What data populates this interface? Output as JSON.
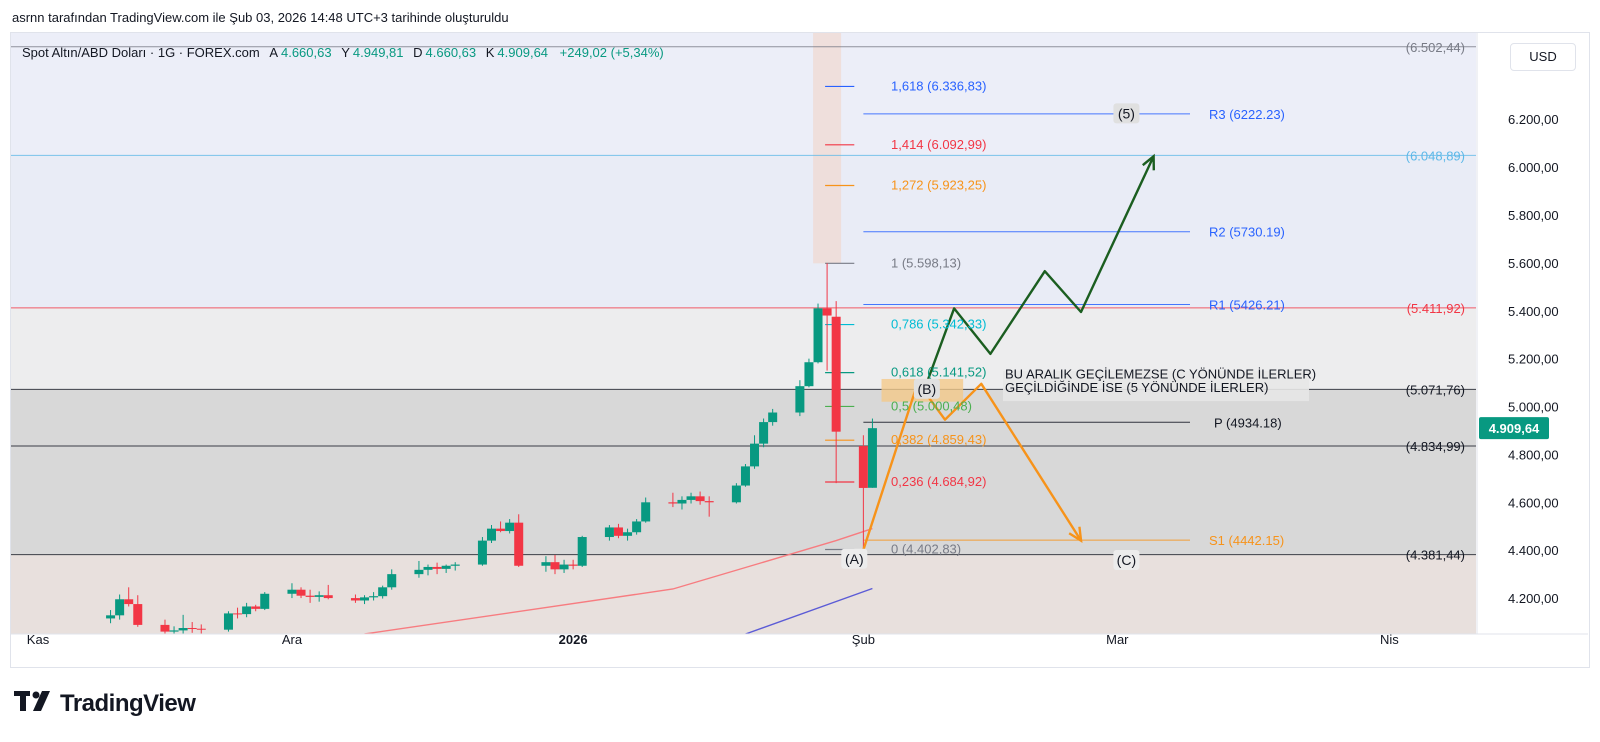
{
  "caption": "asrnn tarafından TradingView.com ile Şub 03, 2026 14:48 UTC+3 tarihinde oluşturuldu",
  "legend": {
    "symbol": "Spot Altın/ABD Doları · 1G · FOREX.com",
    "o_label": "A",
    "o": "4.660,63",
    "h_label": "Y",
    "h": "4.949,81",
    "l_label": "D",
    "l": "4.660,63",
    "c_label": "K",
    "c": "4.909,64",
    "change": "+249,02 (+5,34%)"
  },
  "currency": "USD",
  "logo_text": "TradingView",
  "colors": {
    "up": "#089981",
    "down": "#f23645",
    "fib_blue": "#2962ff",
    "orange": "#f7931a",
    "green_arrow": "#1b5e20"
  },
  "chart_data": {
    "type": "candlestick",
    "ylim": [
      4050,
      6560
    ],
    "x_labels": [
      {
        "label": "Kas",
        "date": "2025-11-03"
      },
      {
        "label": "Ara",
        "date": "2025-12-01"
      },
      {
        "label": "2026",
        "date": "2026-01-01"
      },
      {
        "label": "Şub",
        "date": "2026-02-02"
      },
      {
        "label": "Mar",
        "date": "2026-03-02"
      },
      {
        "label": "Nis",
        "date": "2026-04-01"
      }
    ],
    "y_ticks": [
      "4.200,00",
      "4.400,00",
      "4.600,00",
      "4.800,00",
      "5.000,00",
      "5.200,00",
      "5.400,00",
      "5.600,00",
      "5.800,00",
      "6.000,00",
      "6.200,00"
    ],
    "y_tick_values": [
      4200,
      4400,
      4600,
      4800,
      5000,
      5200,
      5400,
      5600,
      5800,
      6000,
      6200
    ],
    "last_price": {
      "value": 4909.64,
      "label": "4.909,64"
    },
    "candles": [
      {
        "t": "2025-11-11",
        "o": 4115,
        "h": 4150,
        "l": 4095,
        "c": 4128
      },
      {
        "t": "2025-11-12",
        "o": 4128,
        "h": 4215,
        "l": 4110,
        "c": 4195
      },
      {
        "t": "2025-11-13",
        "o": 4195,
        "h": 4245,
        "l": 4165,
        "c": 4175
      },
      {
        "t": "2025-11-14",
        "o": 4175,
        "h": 4212,
        "l": 4080,
        "c": 4088
      },
      {
        "t": "2025-11-17",
        "o": 4088,
        "h": 4110,
        "l": 4030,
        "c": 4060
      },
      {
        "t": "2025-11-18",
        "o": 4060,
        "h": 4082,
        "l": 4040,
        "c": 4065
      },
      {
        "t": "2025-11-19",
        "o": 4065,
        "h": 4130,
        "l": 4050,
        "c": 4075
      },
      {
        "t": "2025-11-20",
        "o": 4075,
        "h": 4100,
        "l": 4055,
        "c": 4072
      },
      {
        "t": "2025-11-21",
        "o": 4072,
        "h": 4090,
        "l": 4050,
        "c": 4068
      },
      {
        "t": "2025-11-24",
        "o": 4068,
        "h": 4145,
        "l": 4060,
        "c": 4136
      },
      {
        "t": "2025-11-25",
        "o": 4136,
        "h": 4160,
        "l": 4115,
        "c": 4133
      },
      {
        "t": "2025-11-26",
        "o": 4133,
        "h": 4180,
        "l": 4120,
        "c": 4165
      },
      {
        "t": "2025-11-27",
        "o": 4165,
        "h": 4172,
        "l": 4145,
        "c": 4155
      },
      {
        "t": "2025-11-28",
        "o": 4155,
        "h": 4225,
        "l": 4150,
        "c": 4218
      },
      {
        "t": "2025-12-01",
        "o": 4218,
        "h": 4262,
        "l": 4200,
        "c": 4235
      },
      {
        "t": "2025-12-02",
        "o": 4235,
        "h": 4245,
        "l": 4200,
        "c": 4210
      },
      {
        "t": "2025-12-03",
        "o": 4210,
        "h": 4235,
        "l": 4180,
        "c": 4205
      },
      {
        "t": "2025-12-04",
        "o": 4205,
        "h": 4228,
        "l": 4185,
        "c": 4212
      },
      {
        "t": "2025-12-05",
        "o": 4212,
        "h": 4255,
        "l": 4195,
        "c": 4200
      },
      {
        "t": "2025-12-08",
        "o": 4200,
        "h": 4215,
        "l": 4180,
        "c": 4190
      },
      {
        "t": "2025-12-09",
        "o": 4190,
        "h": 4212,
        "l": 4175,
        "c": 4203
      },
      {
        "t": "2025-12-10",
        "o": 4203,
        "h": 4225,
        "l": 4190,
        "c": 4208
      },
      {
        "t": "2025-12-11",
        "o": 4208,
        "h": 4252,
        "l": 4198,
        "c": 4245
      },
      {
        "t": "2025-12-12",
        "o": 4245,
        "h": 4320,
        "l": 4235,
        "c": 4300
      },
      {
        "t": "2025-12-15",
        "o": 4300,
        "h": 4355,
        "l": 4285,
        "c": 4318
      },
      {
        "t": "2025-12-16",
        "o": 4318,
        "h": 4340,
        "l": 4295,
        "c": 4330
      },
      {
        "t": "2025-12-17",
        "o": 4330,
        "h": 4348,
        "l": 4300,
        "c": 4322
      },
      {
        "t": "2025-12-18",
        "o": 4322,
        "h": 4340,
        "l": 4305,
        "c": 4335
      },
      {
        "t": "2025-12-19",
        "o": 4335,
        "h": 4350,
        "l": 4315,
        "c": 4340
      },
      {
        "t": "2025-12-22",
        "o": 4340,
        "h": 4455,
        "l": 4335,
        "c": 4440
      },
      {
        "t": "2025-12-23",
        "o": 4440,
        "h": 4505,
        "l": 4430,
        "c": 4490
      },
      {
        "t": "2025-12-24",
        "o": 4490,
        "h": 4520,
        "l": 4475,
        "c": 4480
      },
      {
        "t": "2025-12-25",
        "o": 4480,
        "h": 4530,
        "l": 4470,
        "c": 4515
      },
      {
        "t": "2025-12-26",
        "o": 4515,
        "h": 4550,
        "l": 4330,
        "c": 4335
      },
      {
        "t": "2025-12-29",
        "o": 4335,
        "h": 4375,
        "l": 4310,
        "c": 4350
      },
      {
        "t": "2025-12-30",
        "o": 4350,
        "h": 4380,
        "l": 4300,
        "c": 4320
      },
      {
        "t": "2025-12-31",
        "o": 4320,
        "h": 4360,
        "l": 4305,
        "c": 4340
      },
      {
        "t": "2026-01-01",
        "o": 4340,
        "h": 4360,
        "l": 4320,
        "c": 4335
      },
      {
        "t": "2026-01-02",
        "o": 4335,
        "h": 4460,
        "l": 4330,
        "c": 4455
      },
      {
        "t": "2026-01-05",
        "o": 4455,
        "h": 4505,
        "l": 4440,
        "c": 4495
      },
      {
        "t": "2026-01-06",
        "o": 4495,
        "h": 4510,
        "l": 4450,
        "c": 4460
      },
      {
        "t": "2026-01-07",
        "o": 4460,
        "h": 4490,
        "l": 4440,
        "c": 4475
      },
      {
        "t": "2026-01-08",
        "o": 4475,
        "h": 4530,
        "l": 4465,
        "c": 4520
      },
      {
        "t": "2026-01-09",
        "o": 4520,
        "h": 4620,
        "l": 4515,
        "c": 4600
      },
      {
        "t": "2026-01-12",
        "o": 4600,
        "h": 4640,
        "l": 4580,
        "c": 4595
      },
      {
        "t": "2026-01-13",
        "o": 4595,
        "h": 4625,
        "l": 4570,
        "c": 4610
      },
      {
        "t": "2026-01-14",
        "o": 4610,
        "h": 4640,
        "l": 4595,
        "c": 4625
      },
      {
        "t": "2026-01-15",
        "o": 4625,
        "h": 4645,
        "l": 4590,
        "c": 4605
      },
      {
        "t": "2026-01-16",
        "o": 4605,
        "h": 4625,
        "l": 4540,
        "c": 4600
      },
      {
        "t": "2026-01-19",
        "o": 4600,
        "h": 4680,
        "l": 4595,
        "c": 4670
      },
      {
        "t": "2026-01-20",
        "o": 4670,
        "h": 4760,
        "l": 4665,
        "c": 4750
      },
      {
        "t": "2026-01-21",
        "o": 4750,
        "h": 4880,
        "l": 4740,
        "c": 4845
      },
      {
        "t": "2026-01-22",
        "o": 4845,
        "h": 4950,
        "l": 4830,
        "c": 4935
      },
      {
        "t": "2026-01-23",
        "o": 4935,
        "h": 4990,
        "l": 4920,
        "c": 4975
      },
      {
        "t": "2026-01-26",
        "o": 4975,
        "h": 5110,
        "l": 4960,
        "c": 5085
      },
      {
        "t": "2026-01-27",
        "o": 5085,
        "h": 5200,
        "l": 5080,
        "c": 5185
      },
      {
        "t": "2026-01-28",
        "o": 5185,
        "h": 5430,
        "l": 5180,
        "c": 5410
      },
      {
        "t": "2026-01-29",
        "o": 5410,
        "h": 5598,
        "l": 5150,
        "c": 5380
      },
      {
        "t": "2026-01-30",
        "o": 5375,
        "h": 5440,
        "l": 4680,
        "c": 4895
      },
      {
        "t": "2026-02-02",
        "o": 4835,
        "h": 4880,
        "l": 4402,
        "c": 4660
      },
      {
        "t": "2026-02-03",
        "o": 4660.63,
        "h": 4949.81,
        "l": 4660.63,
        "c": 4909.64
      }
    ],
    "moving_averages": [
      {
        "color": "#f77c80",
        "points": [
          [
            "2025-12-09",
            4050
          ],
          [
            "2026-01-12",
            4238
          ],
          [
            "2026-01-30",
            4440
          ],
          [
            "2026-02-03",
            4490
          ]
        ]
      },
      {
        "color": "#5b5bd6",
        "points": [
          [
            "2026-01-20",
            4050
          ],
          [
            "2026-02-03",
            4240
          ]
        ]
      }
    ],
    "horizontal_levels": [
      {
        "value": 6502.44,
        "label": "(6.502,44)",
        "color": "#787b86"
      },
      {
        "value": 6048.89,
        "label": "(6.048,89)",
        "color": "#5db8e8"
      },
      {
        "value": 5411.92,
        "label": "(5.411,92)",
        "color": "#f23645"
      },
      {
        "value": 5071.76,
        "label": "(5.071,76)",
        "color": "#131722"
      },
      {
        "value": 4834.99,
        "label": "(4.834,99)",
        "color": "#131722"
      },
      {
        "value": 4381.44,
        "label": "(4.381,44)",
        "color": "#131722"
      }
    ],
    "fib_levels": [
      {
        "value": 6336.83,
        "label": "1,618 (6.336,83)",
        "color": "#2962ff"
      },
      {
        "value": 6092.99,
        "label": "1,414 (6.092,99)",
        "color": "#f23645"
      },
      {
        "value": 5923.25,
        "label": "1,272 (5.923,25)",
        "color": "#f7931a"
      },
      {
        "value": 5598.13,
        "label": "1 (5.598,13)",
        "color": "#787b86"
      },
      {
        "value": 5342.33,
        "label": "0,786 (5.342,33)",
        "color": "#00bcd4"
      },
      {
        "value": 5141.52,
        "label": "0,618 (5.141,52)",
        "color": "#089981"
      },
      {
        "value": 5000.48,
        "label": "0,5 (5.000,48)",
        "color": "#4caf50"
      },
      {
        "value": 4859.43,
        "label": "0,382 (4.859,43)",
        "color": "#f7931a"
      },
      {
        "value": 4684.92,
        "label": "0,236 (4.684,92)",
        "color": "#f23645"
      },
      {
        "value": 4402.83,
        "label": "0 (4.402,83)",
        "color": "#787b86"
      }
    ],
    "pivots": [
      {
        "value": 6222.23,
        "label": "R3 (6222.23)",
        "color": "#2962ff"
      },
      {
        "value": 5730.19,
        "label": "R2 (5730.19)",
        "color": "#2962ff"
      },
      {
        "value": 5426.21,
        "label": "R1 (5426.21)",
        "color": "#2962ff"
      },
      {
        "value": 4934.18,
        "label": "P (4934.18)",
        "color": "#131722"
      },
      {
        "value": 4442.15,
        "label": "S1 (4442.15)",
        "color": "#f7931a"
      }
    ],
    "annotations": [
      {
        "text": "BU ARALIK GEÇİLEMEZSE (C YÖNÜNDE İLERLER)"
      },
      {
        "text": "GEÇİLDİĞİNDE İSE (5 YÖNÜNDE İLERLER)"
      }
    ],
    "wave_labels": [
      {
        "text": "(A)",
        "date": "2026-02-01",
        "price": 4360
      },
      {
        "text": "(B)",
        "date": "2026-02-09",
        "price": 5070
      },
      {
        "text": "(5)",
        "date": "2026-03-03",
        "price": 6220
      },
      {
        "text": "(C)",
        "date": "2026-03-03",
        "price": 4355
      }
    ],
    "projection_green": [
      [
        "2026-02-09",
        5100
      ],
      [
        "2026-02-12",
        5410
      ],
      [
        "2026-02-16",
        5220
      ],
      [
        "2026-02-22",
        5565
      ],
      [
        "2026-02-26",
        5395
      ],
      [
        "2026-03-06",
        6045
      ]
    ],
    "projection_orange": [
      [
        "2026-02-02",
        4402
      ],
      [
        "2026-02-08",
        5100
      ],
      [
        "2026-02-11",
        4945
      ],
      [
        "2026-02-15",
        5095
      ],
      [
        "2026-02-26",
        4440
      ]
    ]
  }
}
